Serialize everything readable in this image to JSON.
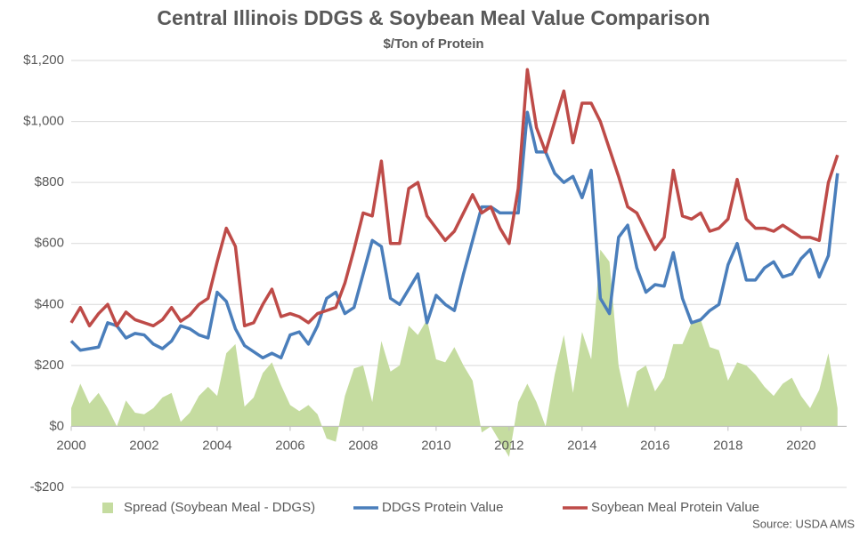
{
  "chart_data": {
    "type": "line",
    "title": "Central Illinois DDGS & Soybean Meal Value Comparison",
    "subtitle": "$/Ton of Protein",
    "source": "Source: USDA AMS",
    "x": [
      2000,
      2000.25,
      2000.5,
      2000.75,
      2001,
      2001.25,
      2001.5,
      2001.75,
      2002,
      2002.25,
      2002.5,
      2002.75,
      2003,
      2003.25,
      2003.5,
      2003.75,
      2004,
      2004.25,
      2004.5,
      2004.75,
      2005,
      2005.25,
      2005.5,
      2005.75,
      2006,
      2006.25,
      2006.5,
      2006.75,
      2007,
      2007.25,
      2007.5,
      2007.75,
      2008,
      2008.25,
      2008.5,
      2008.75,
      2009,
      2009.25,
      2009.5,
      2009.75,
      2010,
      2010.25,
      2010.5,
      2010.75,
      2011,
      2011.25,
      2011.5,
      2011.75,
      2012,
      2012.25,
      2012.5,
      2012.75,
      2013,
      2013.25,
      2013.5,
      2013.75,
      2014,
      2014.25,
      2014.5,
      2014.75,
      2015,
      2015.25,
      2015.5,
      2015.75,
      2016,
      2016.25,
      2016.5,
      2016.75,
      2017,
      2017.25,
      2017.5,
      2017.75,
      2018,
      2018.25,
      2018.5,
      2018.75,
      2019,
      2019.25,
      2019.5,
      2019.75,
      2020,
      2020.25,
      2020.5,
      2020.75,
      2021
    ],
    "series": [
      {
        "name": "Spread (Soybean Meal - DDGS)",
        "color": "#c5dca0",
        "kind": "area",
        "values": [
          60,
          140,
          75,
          110,
          60,
          0,
          85,
          45,
          40,
          60,
          95,
          110,
          15,
          45,
          100,
          130,
          100,
          240,
          270,
          65,
          95,
          175,
          210,
          135,
          70,
          50,
          70,
          40,
          -40,
          -50,
          100,
          190,
          200,
          80,
          280,
          180,
          200,
          330,
          300,
          350,
          220,
          210,
          260,
          200,
          150,
          -20,
          0,
          -50,
          -100,
          80,
          140,
          80,
          0,
          170,
          300,
          110,
          310,
          220,
          580,
          540,
          200,
          60,
          180,
          200,
          115,
          160,
          270,
          270,
          340,
          350,
          260,
          250,
          150,
          210,
          200,
          170,
          130,
          100,
          140,
          160,
          100,
          60,
          120,
          240,
          60
        ]
      },
      {
        "name": "DDGS Protein Value",
        "color": "#4a7ebb",
        "kind": "line",
        "values": [
          280,
          250,
          255,
          260,
          340,
          330,
          290,
          305,
          300,
          270,
          255,
          280,
          330,
          320,
          300,
          290,
          440,
          410,
          320,
          265,
          245,
          225,
          240,
          225,
          300,
          310,
          270,
          330,
          420,
          440,
          370,
          390,
          500,
          610,
          590,
          420,
          400,
          450,
          500,
          340,
          430,
          400,
          380,
          500,
          610,
          720,
          720,
          700,
          700,
          700,
          1030,
          900,
          900,
          830,
          800,
          820,
          750,
          840,
          420,
          370,
          620,
          660,
          520,
          440,
          465,
          460,
          570,
          420,
          340,
          350,
          380,
          400,
          530,
          600,
          480,
          480,
          520,
          540,
          490,
          500,
          550,
          580,
          490,
          560,
          830
        ]
      },
      {
        "name": "Soybean Meal Protein Value",
        "color": "#be4b48",
        "kind": "line",
        "values": [
          340,
          390,
          330,
          370,
          400,
          330,
          375,
          350,
          340,
          330,
          350,
          390,
          345,
          365,
          400,
          420,
          540,
          650,
          590,
          330,
          340,
          400,
          450,
          360,
          370,
          360,
          340,
          370,
          380,
          390,
          470,
          580,
          700,
          690,
          870,
          600,
          600,
          780,
          800,
          690,
          650,
          610,
          640,
          700,
          760,
          700,
          720,
          650,
          600,
          780,
          1170,
          980,
          900,
          1000,
          1100,
          930,
          1060,
          1060,
          1000,
          910,
          820,
          720,
          700,
          640,
          580,
          620,
          840,
          690,
          680,
          700,
          640,
          650,
          680,
          810,
          680,
          650,
          650,
          640,
          660,
          640,
          620,
          620,
          610,
          800,
          890
        ]
      }
    ],
    "xlim": [
      2000,
      2021.25
    ],
    "xticks": [
      2000,
      2002,
      2004,
      2006,
      2008,
      2010,
      2012,
      2014,
      2016,
      2018,
      2020
    ],
    "ylim": [
      -200,
      1200
    ],
    "yticks": [
      {
        "value": -200,
        "label": "-$200"
      },
      {
        "value": 0,
        "label": "$0"
      },
      {
        "value": 200,
        "label": "$200"
      },
      {
        "value": 400,
        "label": "$400"
      },
      {
        "value": 600,
        "label": "$600"
      },
      {
        "value": 800,
        "label": "$800"
      },
      {
        "value": 1000,
        "label": "$1,000"
      },
      {
        "value": 1200,
        "label": "$1,200"
      }
    ],
    "grid": true,
    "legend": "bottom"
  }
}
